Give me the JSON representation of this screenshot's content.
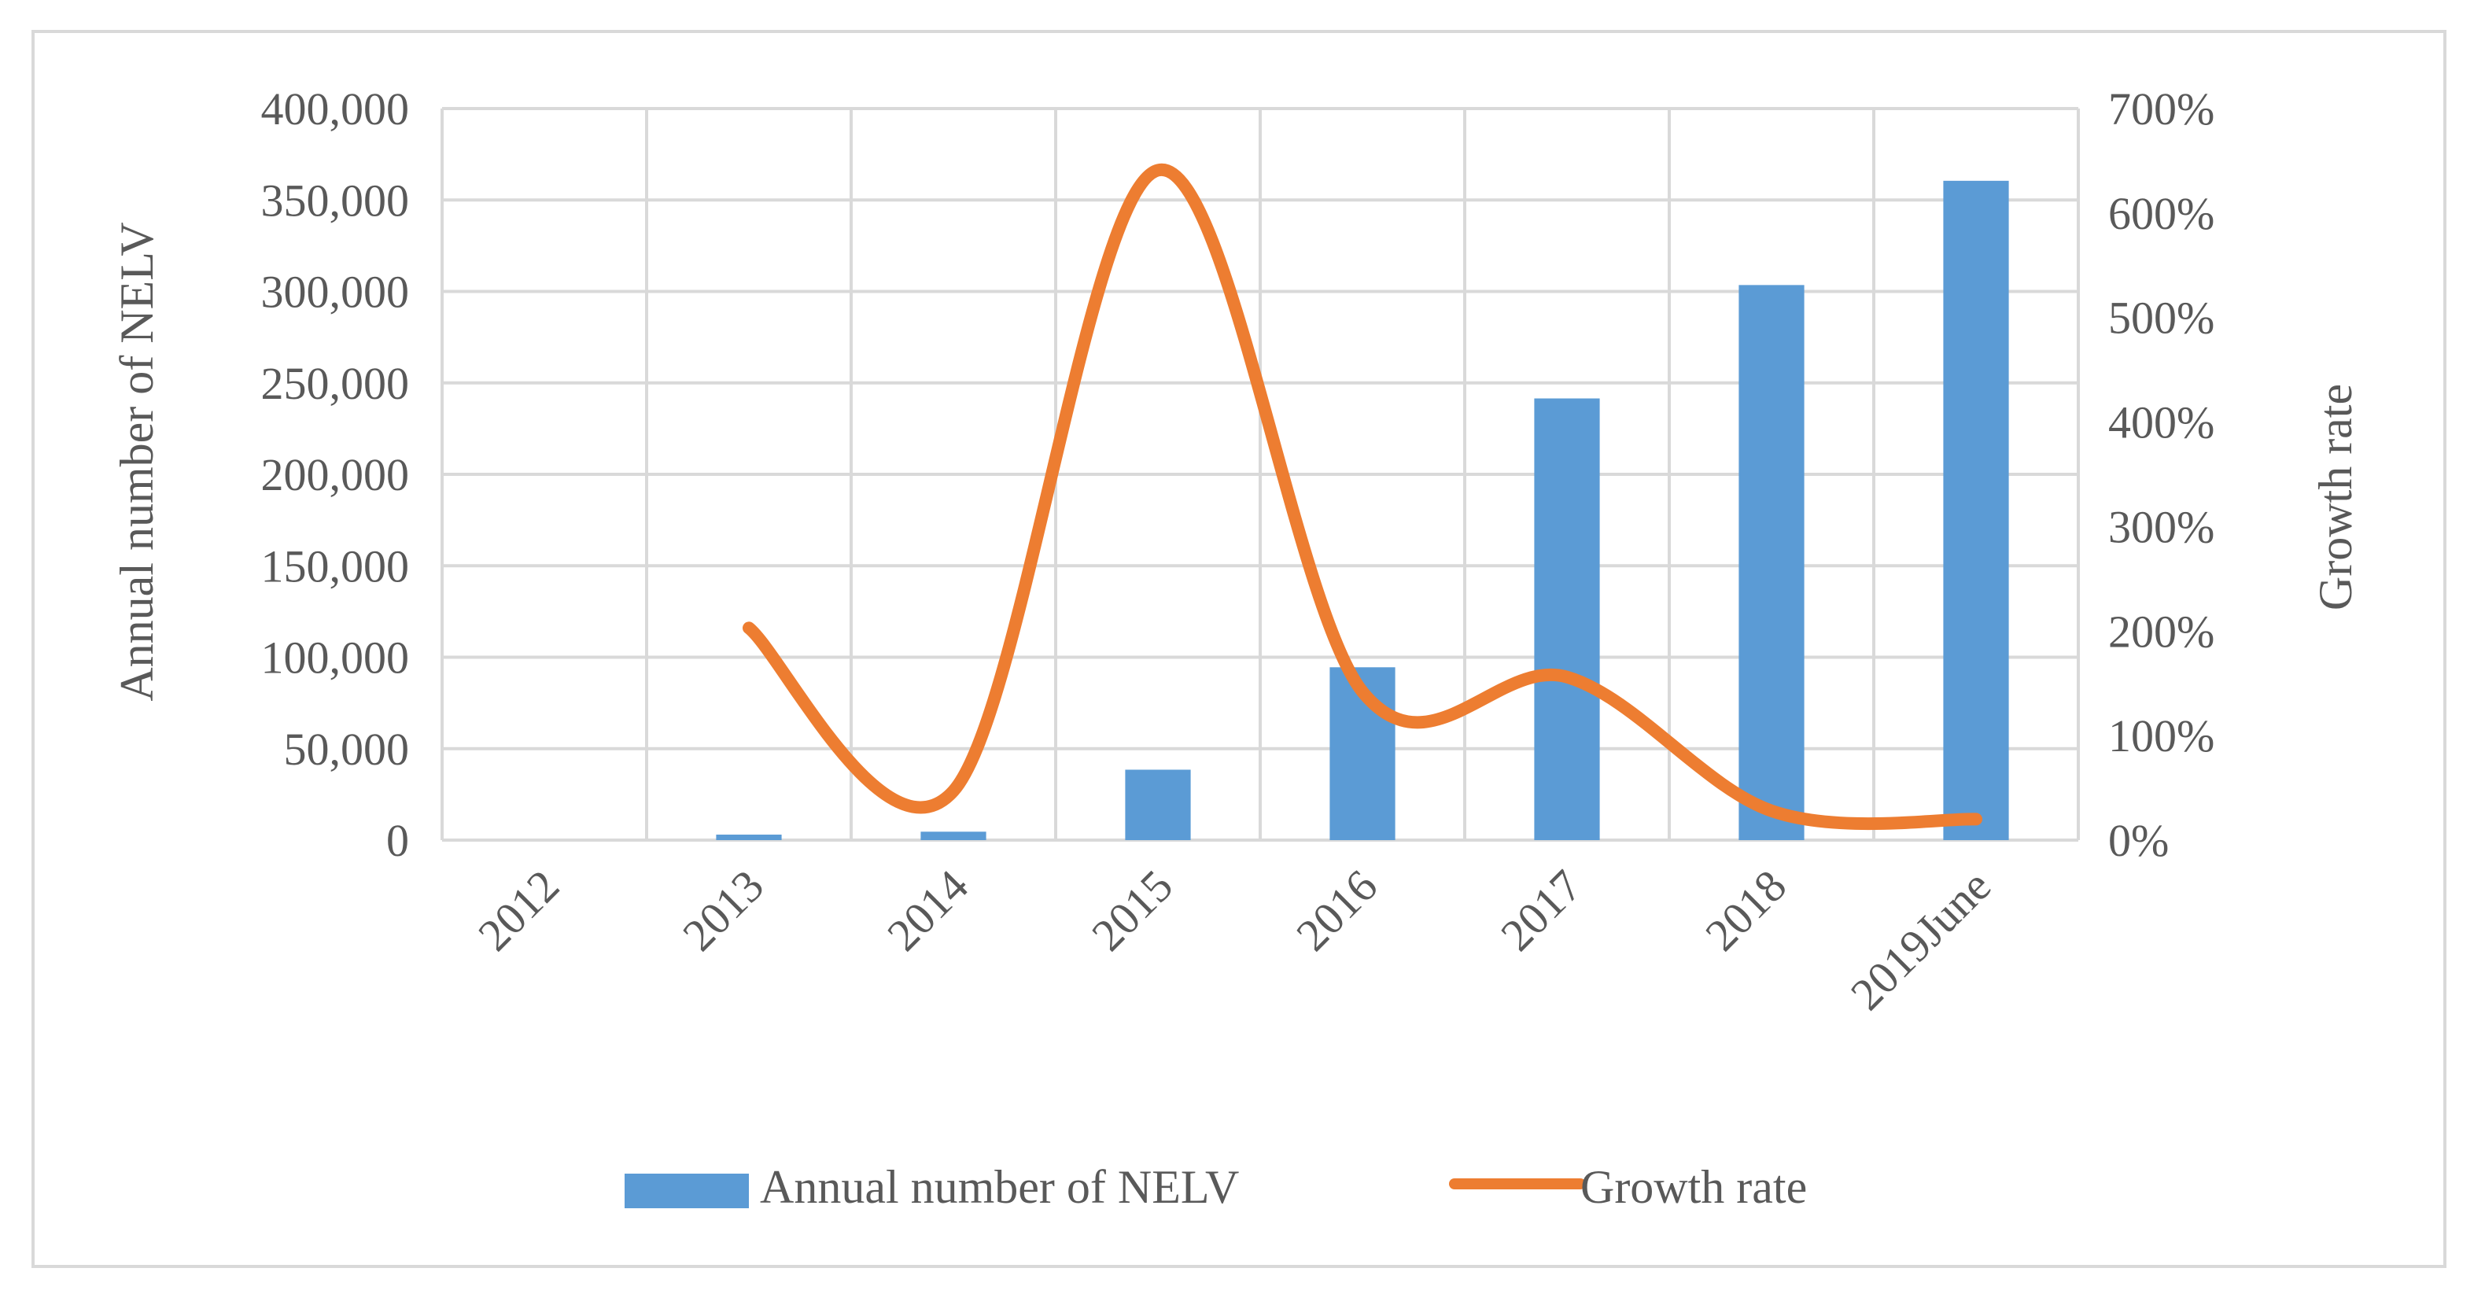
{
  "chart_data": {
    "type": "bar",
    "categories": [
      "2012",
      "2013",
      "2014",
      "2015",
      "2016",
      "2017",
      "2018",
      "2019June"
    ],
    "series": [
      {
        "name": "Annual number of NELV",
        "kind": "bar",
        "axis": "left",
        "color": "#5b9bd5",
        "values": [
          0,
          3000,
          4600,
          38500,
          94500,
          241500,
          303500,
          360500
        ]
      },
      {
        "name": "Growth rate",
        "kind": "line",
        "axis": "right",
        "smooth": true,
        "color": "#ed7d31",
        "values": [
          null,
          2.03,
          0.47,
          6.41,
          1.42,
          1.56,
          0.28,
          0.2
        ]
      }
    ],
    "ylabel": "Annual number of NELV",
    "y2label": "Growth rate",
    "ylim": [
      0,
      400000
    ],
    "y2lim": [
      0,
      7
    ],
    "yticks": [
      "0",
      "50,000",
      "100,000",
      "150,000",
      "200,000",
      "250,000",
      "300,000",
      "350,000",
      "400,000"
    ],
    "y2ticks": [
      "0%",
      "100%",
      "200%",
      "300%",
      "400%",
      "500%",
      "600%",
      "700%"
    ],
    "grid": true,
    "legend": {
      "position": "bottom",
      "items": [
        "Annual number of NELV",
        "Growth rate"
      ]
    },
    "colors": {
      "bar": "#5b9bd5",
      "line": "#ed7d31",
      "grid": "#d9d9d9",
      "text": "#595959"
    }
  }
}
